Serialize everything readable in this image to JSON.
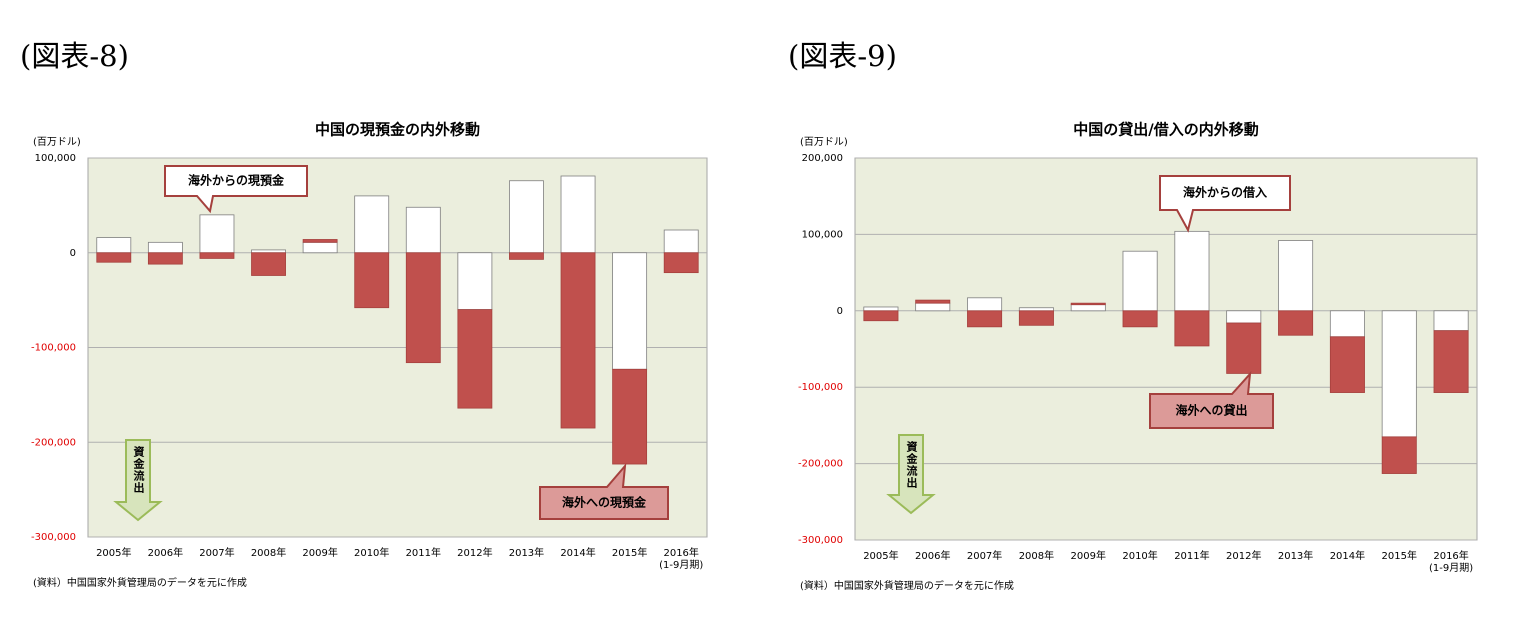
{
  "chart_data": [
    {
      "type": "bar",
      "stacked": true,
      "heading": "(図表-8)",
      "title": "中国の現預金の内外移動",
      "y_unit": "(百万ドル)",
      "source": "(資料）中国国家外貨管理局のデータを元に作成",
      "categories": [
        "2005年",
        "2006年",
        "2007年",
        "2008年",
        "2009年",
        "2010年",
        "2011年",
        "2012年",
        "2013年",
        "2014年",
        "2015年",
        "2016年"
      ],
      "category_note": "(1-9月期)",
      "series": [
        {
          "name": "海外からの現預金",
          "color": "#ffffff",
          "values": [
            16000,
            11000,
            40000,
            3000,
            11000,
            60000,
            48000,
            -60000,
            76000,
            81000,
            -123000,
            24000
          ]
        },
        {
          "name": "海外への現預金",
          "color": "#c0504d",
          "values": [
            -10000,
            -12000,
            -6000,
            -24000,
            3000,
            -58000,
            -116000,
            -104000,
            -7000,
            -185000,
            -100000,
            -21000
          ]
        }
      ],
      "annotation": "資金流出",
      "ylim": [
        -300000,
        100000
      ],
      "yticks": [
        {
          "value": -300000,
          "label": "-300,000"
        },
        {
          "value": -200000,
          "label": "-200,000"
        },
        {
          "value": -100000,
          "label": "-100,000"
        },
        0,
        {
          "value": 100000,
          "label": "100,000"
        }
      ],
      "negative_tick_color": "#e00000",
      "grid": true
    },
    {
      "type": "bar",
      "stacked": true,
      "heading": "(図表-9)",
      "title": "中国の貸出/借入の内外移動",
      "y_unit": "(百万ドル)",
      "source": "(資料）中国国家外貨管理局のデータを元に作成",
      "categories": [
        "2005年",
        "2006年",
        "2007年",
        "2008年",
        "2009年",
        "2010年",
        "2011年",
        "2012年",
        "2013年",
        "2014年",
        "2015年",
        "2016年"
      ],
      "category_note": "(1-9月期)",
      "series": [
        {
          "name": "海外からの借入",
          "color": "#ffffff",
          "values": [
            5000,
            10000,
            17000,
            4000,
            8000,
            78000,
            104000,
            -16000,
            92000,
            -34000,
            -165000,
            -26000
          ]
        },
        {
          "name": "海外への貸出",
          "color": "#c0504d",
          "values": [
            -13000,
            4000,
            -21000,
            -19000,
            2000,
            -21000,
            -46000,
            -66000,
            -32000,
            -73000,
            -48000,
            -81000
          ]
        }
      ],
      "annotation": "資金流出",
      "ylim": [
        -300000,
        200000
      ],
      "yticks": [
        {
          "value": -300000,
          "label": "-300,000"
        },
        {
          "value": -200000,
          "label": "-200,000"
        },
        {
          "value": -100000,
          "label": "-100,000"
        },
        0,
        {
          "value": 100000,
          "label": "100,000"
        },
        {
          "value": 200000,
          "label": "200,000"
        }
      ],
      "negative_tick_color": "#e00000",
      "grid": true
    }
  ]
}
